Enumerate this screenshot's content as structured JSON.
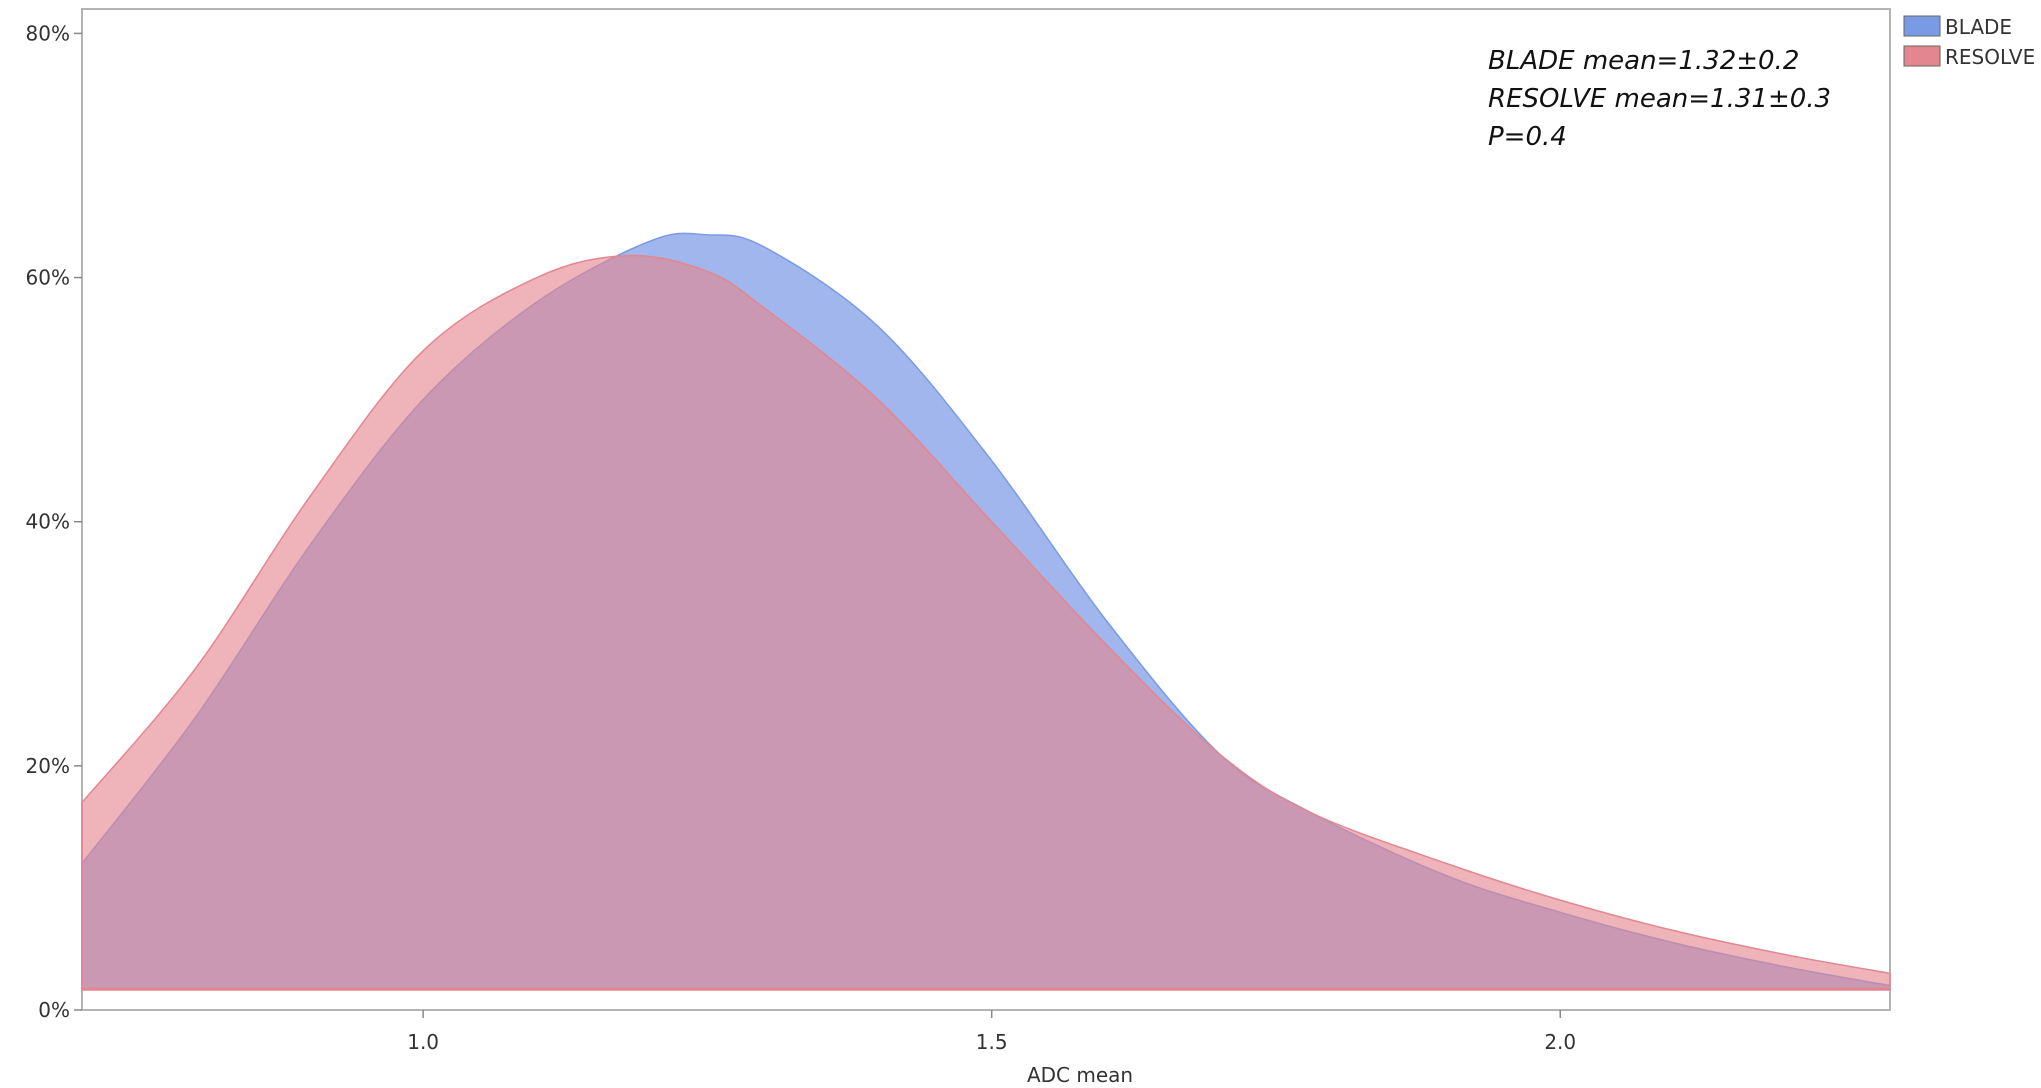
{
  "chart_data": {
    "type": "area",
    "title": "",
    "xlabel": "ADC mean",
    "ylabel": "",
    "xlim": [
      0.7,
      2.29
    ],
    "ylim": [
      0,
      0.82
    ],
    "x_ticks": [
      1.0,
      1.5,
      2.0
    ],
    "x_tick_labels": [
      "1.0",
      "1.5",
      "2.0"
    ],
    "y_ticks": [
      0,
      0.2,
      0.4,
      0.6,
      0.8
    ],
    "y_tick_labels": [
      "0%",
      "20%",
      "40%",
      "60%",
      "80%"
    ],
    "grid": false,
    "legend_position": "top-right-outside",
    "baseline": 0.017,
    "series": [
      {
        "name": "BLADE",
        "color": "#7b9ae6",
        "x": [
          0.7,
          0.8,
          0.9,
          1.0,
          1.1,
          1.2,
          1.25,
          1.3,
          1.4,
          1.5,
          1.6,
          1.7,
          1.78,
          1.9,
          2.0,
          2.1,
          2.2,
          2.29
        ],
        "values": [
          0.12,
          0.24,
          0.38,
          0.5,
          0.58,
          0.63,
          0.635,
          0.625,
          0.56,
          0.45,
          0.32,
          0.21,
          0.162,
          0.11,
          0.08,
          0.055,
          0.035,
          0.02
        ]
      },
      {
        "name": "RESOLVE",
        "color": "#e3868f",
        "x": [
          0.7,
          0.8,
          0.9,
          1.0,
          1.1,
          1.18,
          1.25,
          1.3,
          1.4,
          1.5,
          1.6,
          1.7,
          1.78,
          1.9,
          2.0,
          2.1,
          2.2,
          2.29
        ],
        "values": [
          0.17,
          0.28,
          0.42,
          0.54,
          0.6,
          0.618,
          0.605,
          0.575,
          0.5,
          0.4,
          0.3,
          0.21,
          0.162,
          0.12,
          0.09,
          0.065,
          0.045,
          0.03
        ]
      }
    ],
    "annotations": [
      "BLADE mean=1.32±0.2",
      "RESOLVE mean=1.31±0.3",
      "P=0.4"
    ]
  }
}
